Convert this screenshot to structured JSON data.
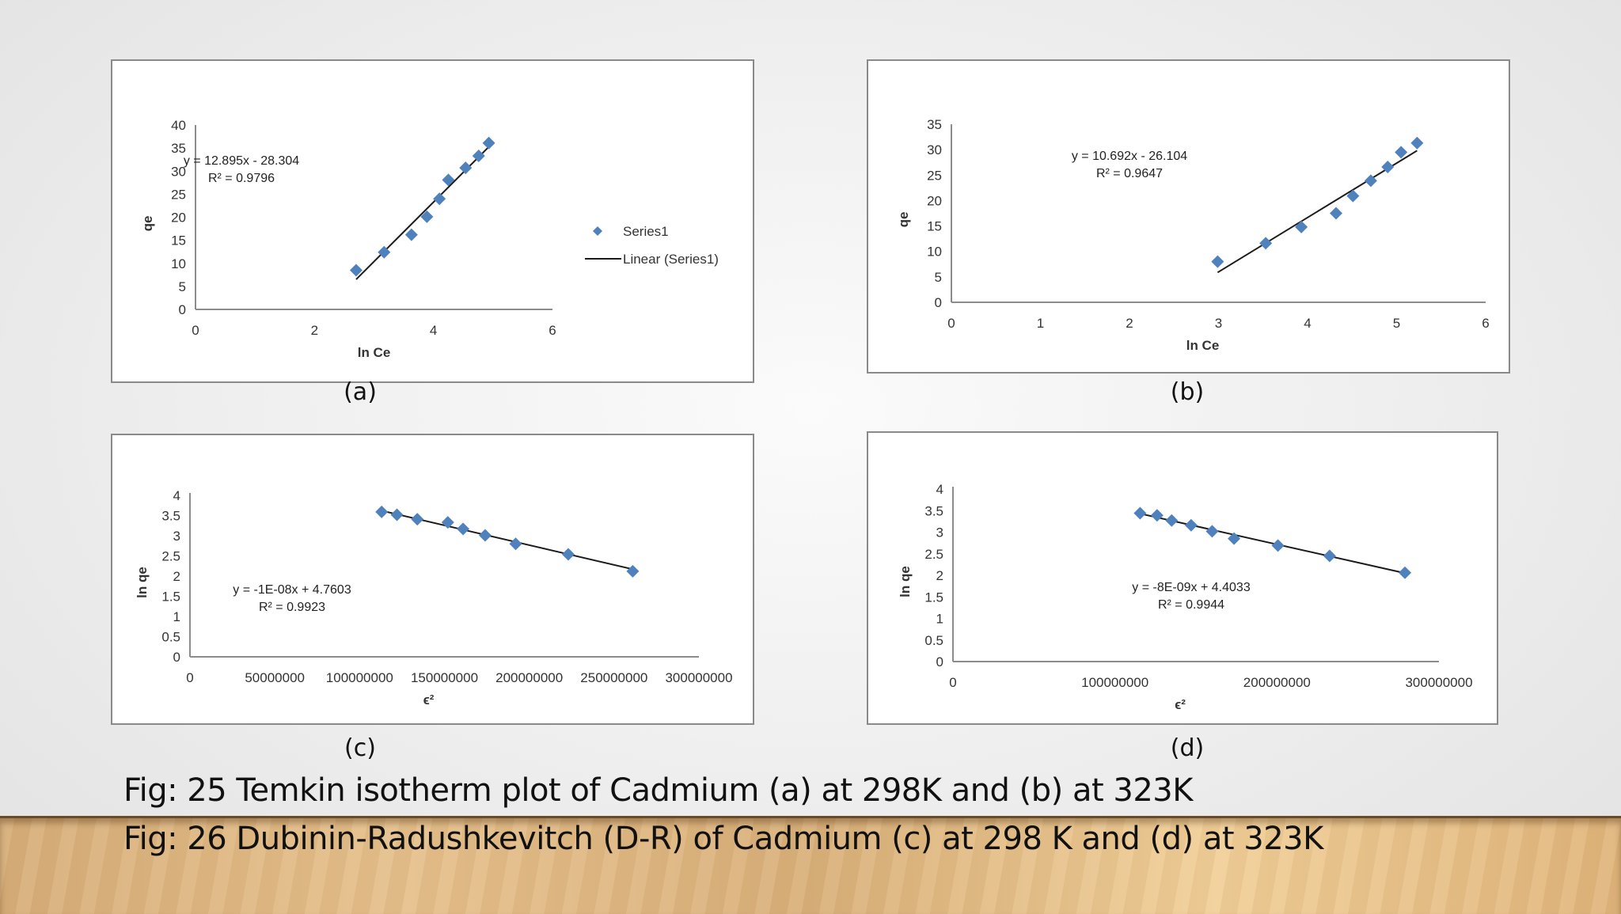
{
  "colors": {
    "marker": "#4F81BD",
    "trendline": "#1a1a1a",
    "axis": "#8c8c8c",
    "frame": "#8a8a8a"
  },
  "labels": {
    "a": "(a)",
    "b": "(b)",
    "c": "(c)",
    "d": "(d)"
  },
  "captions": {
    "fig25": "Fig: 25 Temkin isotherm plot of Cadmium (a) at 298K and (b) at 323K",
    "fig26": "Fig: 26 Dubinin-Radushkevitch (D-R) of Cadmium (c) at 298 K and (d) at 323K"
  },
  "chart_data": [
    {
      "id": "a",
      "type": "scatter",
      "title": "",
      "xlabel": "ln Ce",
      "ylabel": "qe",
      "xlim": [
        0,
        6
      ],
      "ylim": [
        0,
        40
      ],
      "xticks": [
        0,
        2,
        4,
        6
      ],
      "xtick_labels": [
        "0",
        "2",
        "4",
        "6"
      ],
      "yticks": [
        0,
        5,
        10,
        15,
        20,
        25,
        30,
        35,
        40
      ],
      "ytick_labels": [
        "0",
        "5",
        "10",
        "15",
        "20",
        "25",
        "30",
        "35",
        "40"
      ],
      "grid": false,
      "legend": {
        "position": "right",
        "entries": [
          "Series1",
          "Linear (Series1)"
        ]
      },
      "series": [
        {
          "name": "Series1",
          "x": [
            2.7,
            3.17,
            3.63,
            3.89,
            4.1,
            4.25,
            4.54,
            4.76,
            4.93
          ],
          "y": [
            8.5,
            12.4,
            16.2,
            20.1,
            24.0,
            28.1,
            30.7,
            33.3,
            36.1
          ]
        }
      ],
      "trendline": {
        "name": "Linear (Series1)",
        "slope": 12.895,
        "intercept": -28.304,
        "x_range": [
          2.7,
          4.93
        ]
      },
      "annotations": [
        "y = 12.895x - 28.304",
        "R² = 0.9796"
      ]
    },
    {
      "id": "b",
      "type": "scatter",
      "title": "",
      "xlabel": "ln Ce",
      "ylabel": "qe",
      "xlim": [
        0,
        6
      ],
      "ylim": [
        0,
        35
      ],
      "xticks": [
        0,
        1,
        2,
        3,
        4,
        5,
        6
      ],
      "xtick_labels": [
        "0",
        "1",
        "2",
        "3",
        "4",
        "5",
        "6"
      ],
      "yticks": [
        0,
        5,
        10,
        15,
        20,
        25,
        30,
        35
      ],
      "ytick_labels": [
        "0",
        "5",
        "10",
        "15",
        "20",
        "25",
        "30",
        "35"
      ],
      "grid": false,
      "legend": null,
      "series": [
        {
          "name": "Series1",
          "x": [
            2.99,
            3.53,
            3.93,
            4.32,
            4.51,
            4.71,
            4.9,
            5.05,
            5.23
          ],
          "y": [
            8.0,
            11.6,
            14.8,
            17.5,
            20.9,
            23.9,
            26.6,
            29.5,
            31.3
          ]
        }
      ],
      "trendline": {
        "name": "Linear (Series1)",
        "slope": 10.692,
        "intercept": -26.104,
        "x_range": [
          2.99,
          5.23
        ]
      },
      "annotations": [
        "y = 10.692x - 26.104",
        "R² = 0.9647"
      ]
    },
    {
      "id": "c",
      "type": "scatter",
      "title": "",
      "xlabel": "ϵ²",
      "ylabel": "ln qe",
      "xlim": [
        0,
        300000000
      ],
      "ylim": [
        0,
        4
      ],
      "xticks": [
        0,
        50000000,
        100000000,
        150000000,
        200000000,
        250000000,
        300000000
      ],
      "xtick_labels": [
        "0",
        "50000000",
        "100000000",
        "150000000",
        "200000000",
        "250000000",
        "300000000"
      ],
      "yticks": [
        0,
        0.5,
        1,
        1.5,
        2,
        2.5,
        3,
        3.5,
        4
      ],
      "ytick_labels": [
        "0",
        "0.5",
        "1",
        "1.5",
        "2",
        "2.5",
        "3",
        "3.5",
        "4"
      ],
      "grid": false,
      "legend": null,
      "series": [
        {
          "name": "Series1",
          "x": [
            113000000,
            122000000,
            134000000,
            152000000,
            161000000,
            174000000,
            192000000,
            223000000,
            261000000
          ],
          "y": [
            3.59,
            3.52,
            3.41,
            3.33,
            3.17,
            3.01,
            2.8,
            2.54,
            2.12
          ]
        }
      ],
      "trendline": {
        "name": "Linear (Series1)",
        "slope": -1e-08,
        "intercept": 4.7603,
        "x_range": [
          113000000,
          261000000
        ],
        "y_range_drawn": [
          3.62,
          2.17
        ]
      },
      "annotations": [
        "y = -1E-08x + 4.7603",
        "R² = 0.9923"
      ]
    },
    {
      "id": "d",
      "type": "scatter",
      "title": "",
      "xlabel": "ϵ²",
      "ylabel": "ln qe",
      "xlim": [
        0,
        300000000
      ],
      "ylim": [
        0,
        4
      ],
      "xticks": [
        0,
        100000000,
        200000000,
        300000000
      ],
      "xtick_labels": [
        "0",
        "100000000",
        "200000000",
        "300000000"
      ],
      "yticks": [
        0,
        0.5,
        1,
        1.5,
        2,
        2.5,
        3,
        3.5,
        4
      ],
      "ytick_labels": [
        "0",
        "0.5",
        "1",
        "1.5",
        "2",
        "2.5",
        "3",
        "3.5",
        "4"
      ],
      "grid": false,
      "legend": null,
      "series": [
        {
          "name": "Series1",
          "x": [
            115500000,
            126000000,
            135000000,
            147000000,
            160000000,
            173500000,
            200600000,
            232500000,
            279000000
          ],
          "y": [
            3.44,
            3.39,
            3.27,
            3.16,
            3.02,
            2.85,
            2.69,
            2.45,
            2.06
          ]
        }
      ],
      "trendline": {
        "name": "Linear (Series1)",
        "slope": -8e-09,
        "intercept": 4.4033,
        "x_range": [
          115500000,
          279000000
        ],
        "y_range_drawn": [
          3.43,
          2.05
        ]
      },
      "annotations": [
        "y = -8E-09x + 4.4033",
        "R² = 0.9944"
      ]
    }
  ]
}
